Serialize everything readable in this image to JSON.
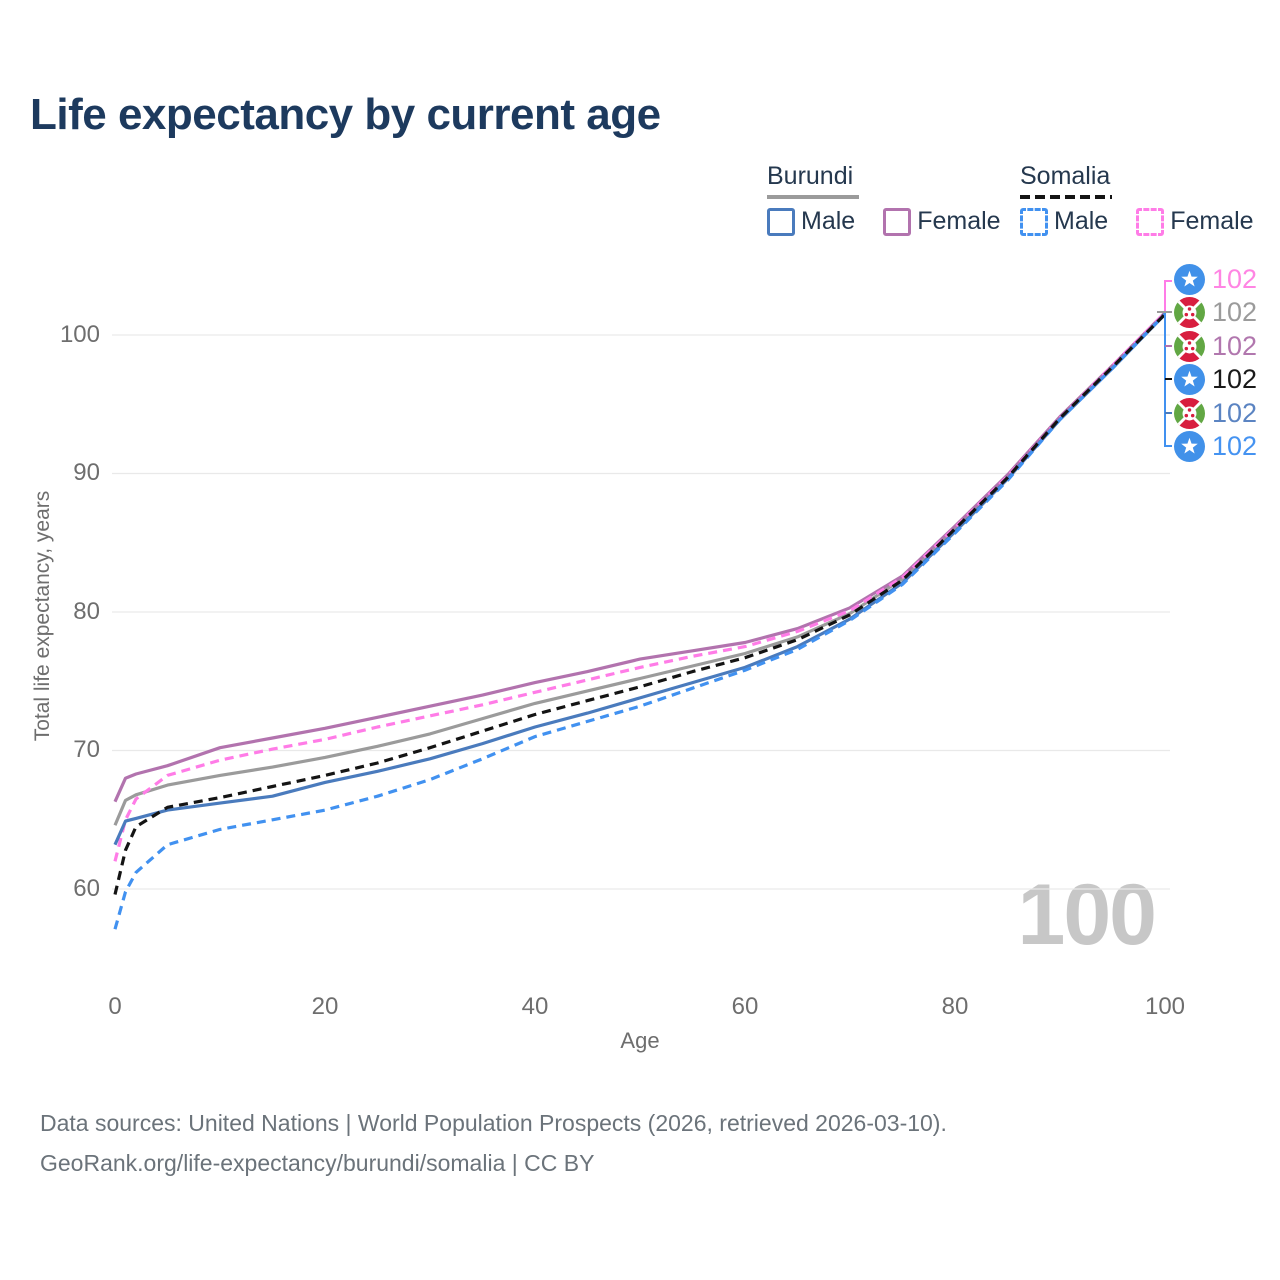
{
  "title": "Life expectancy by current age",
  "legend": {
    "groups": [
      {
        "title": "Burundi",
        "line_style": "solid",
        "rule_color": "#9b9b9b",
        "items": [
          {
            "label": "Male",
            "color": "#4a7bbd"
          },
          {
            "label": "Female",
            "color": "#b273ae"
          }
        ]
      },
      {
        "title": "Somalia",
        "line_style": "dashed",
        "rule_color": "#141414",
        "items": [
          {
            "label": "Male",
            "color": "#4191f0"
          },
          {
            "label": "Female",
            "color": "#ff7ce7"
          }
        ]
      }
    ]
  },
  "chart_data": {
    "type": "line",
    "title": "Life expectancy by current age",
    "xlabel": "Age",
    "ylabel": "Total life expectancy, years",
    "x_ticks": [
      0,
      20,
      40,
      60,
      80,
      100
    ],
    "y_ticks": [
      100,
      90,
      80,
      70,
      60
    ],
    "xlim": [
      0,
      100
    ],
    "ylim": [
      57,
      104
    ],
    "grid": "horizontal",
    "age_indicator": "100",
    "ages": [
      0,
      1,
      2,
      5,
      10,
      15,
      20,
      25,
      30,
      35,
      40,
      45,
      50,
      55,
      60,
      65,
      70,
      75,
      80,
      85,
      90,
      95,
      100
    ],
    "series": [
      {
        "name": "Burundi Both sexes",
        "country": "Burundi",
        "sex": "Both",
        "color": "#9b9b9b",
        "dash": "solid",
        "values": [
          64.6,
          66.4,
          66.8,
          67.5,
          68.2,
          68.8,
          69.5,
          70.3,
          71.2,
          72.3,
          73.4,
          74.3,
          75.2,
          76.1,
          77.0,
          78.2,
          79.9,
          82.4,
          86.0,
          89.8,
          94.0,
          97.7,
          101.6
        ]
      },
      {
        "name": "Burundi Female",
        "country": "Burundi",
        "sex": "Female",
        "color": "#b273ae",
        "dash": "solid",
        "values": [
          66.3,
          68.0,
          68.3,
          68.9,
          70.2,
          70.9,
          71.6,
          72.4,
          73.2,
          74.0,
          74.9,
          75.7,
          76.6,
          77.2,
          77.8,
          78.8,
          80.3,
          82.6,
          86.2,
          89.9,
          94.1,
          97.8,
          101.6
        ]
      },
      {
        "name": "Somalia Female",
        "country": "Somalia",
        "sex": "Female",
        "color": "#ff7ce7",
        "dash": "dashed",
        "values": [
          62.0,
          65.0,
          66.5,
          68.2,
          69.3,
          70.1,
          70.8,
          71.7,
          72.5,
          73.3,
          74.2,
          75.1,
          76.0,
          76.8,
          77.5,
          78.6,
          80.1,
          82.5,
          86.1,
          89.8,
          94.0,
          97.8,
          101.6
        ]
      },
      {
        "name": "Burundi Male",
        "country": "Burundi",
        "sex": "Male",
        "color": "#4a7bbd",
        "dash": "solid",
        "values": [
          63.2,
          64.9,
          65.1,
          65.7,
          66.2,
          66.7,
          67.7,
          68.5,
          69.4,
          70.5,
          71.7,
          72.7,
          73.8,
          74.9,
          76.0,
          77.5,
          79.5,
          82.1,
          85.8,
          89.6,
          93.9,
          97.6,
          101.5
        ]
      },
      {
        "name": "Somalia Male",
        "country": "Somalia",
        "sex": "Male",
        "color": "#4191f0",
        "dash": "dashed",
        "values": [
          57.1,
          59.8,
          61.2,
          63.2,
          64.3,
          65.0,
          65.7,
          66.7,
          67.9,
          69.4,
          71.0,
          72.1,
          73.2,
          74.5,
          75.8,
          77.3,
          79.4,
          82.0,
          85.7,
          89.5,
          93.9,
          97.6,
          101.5
        ]
      },
      {
        "name": "Somalia Both sexes",
        "country": "Somalia",
        "sex": "Both",
        "color": "#141414",
        "dash": "dashed",
        "values": [
          59.6,
          62.8,
          64.5,
          65.9,
          66.6,
          67.4,
          68.2,
          69.1,
          70.2,
          71.4,
          72.6,
          73.6,
          74.6,
          75.7,
          76.7,
          78.0,
          79.8,
          82.3,
          86.0,
          89.7,
          94.0,
          97.7,
          101.5
        ]
      }
    ],
    "end_labels": [
      {
        "series": "Somalia Female",
        "flag": "somalia",
        "value": "102",
        "color": "#ff85e3"
      },
      {
        "series": "Burundi Both sexes",
        "flag": "burundi",
        "value": "102",
        "color": "#9b9b9b"
      },
      {
        "series": "Burundi Female",
        "flag": "burundi",
        "value": "102",
        "color": "#b177ae"
      },
      {
        "series": "Somalia Both sexes",
        "flag": "somalia",
        "value": "102",
        "color": "#1a1a1a"
      },
      {
        "series": "Burundi Male",
        "flag": "burundi",
        "value": "102",
        "color": "#5b84c2"
      },
      {
        "series": "Somalia Male",
        "flag": "somalia",
        "value": "102",
        "color": "#4593f1"
      }
    ],
    "legend_position": "top-right"
  },
  "footer": {
    "line1": "Data sources: United Nations | World Population Prospects (2026, retrieved 2026-03-10).",
    "line2": "GeoRank.org/life-expectancy/burundi/somalia | CC BY"
  }
}
